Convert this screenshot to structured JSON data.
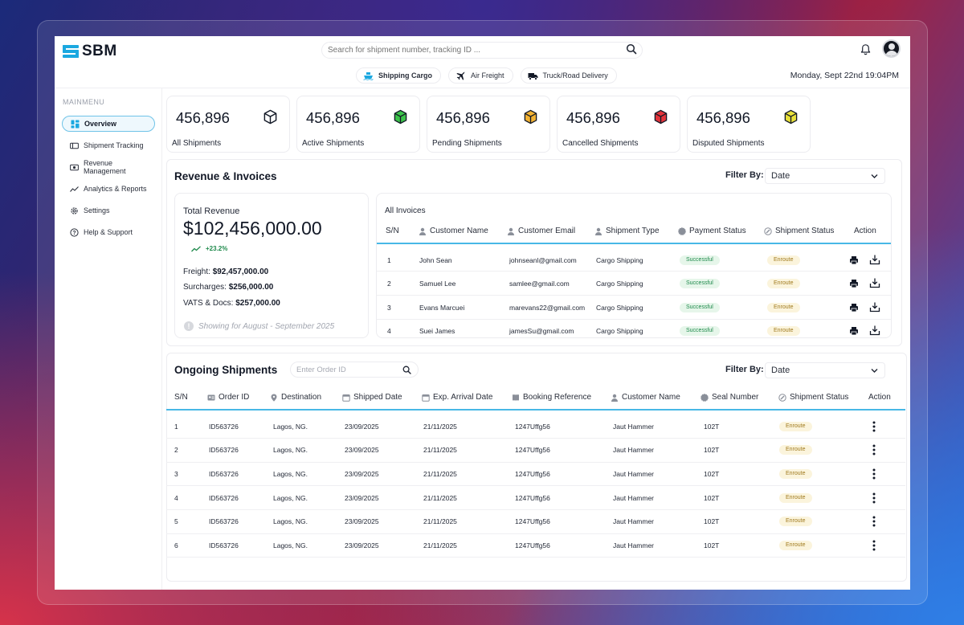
{
  "app": {
    "brand": "SBM"
  },
  "search": {
    "placeholder": "Search for shipment number, tracking ID ..."
  },
  "header": {
    "datetime": "Monday, Sept 22nd  19:04PM"
  },
  "modes": [
    {
      "label": "Shipping Cargo",
      "icon": "ship-icon"
    },
    {
      "label": "Air Freight",
      "icon": "plane-icon"
    },
    {
      "label": "Truck/Road Delivery",
      "icon": "truck-icon"
    }
  ],
  "sidebar": {
    "title": "MAINMENU",
    "items": [
      {
        "label": "Overview",
        "icon": "grid-icon"
      },
      {
        "label": "Shipment Tracking",
        "icon": "tracking-icon"
      },
      {
        "label": "Revenue Management",
        "icon": "money-icon"
      },
      {
        "label": "Analytics & Reports",
        "icon": "chart-line-icon"
      },
      {
        "label": "Settings",
        "icon": "gear-icon"
      },
      {
        "label": "Help & Support",
        "icon": "help-icon"
      }
    ]
  },
  "stats": [
    {
      "value": "456,896",
      "label": "All Shipments",
      "color": "#ffffff"
    },
    {
      "value": "456,896",
      "label": "Active Shipments",
      "color": "#3cc24a"
    },
    {
      "value": "456,896",
      "label": "Pending Shipments",
      "color": "#f2b233"
    },
    {
      "value": "456,896",
      "label": "Cancelled Shipments",
      "color": "#e2343b"
    },
    {
      "value": "456,896",
      "label": "Disputed Shipments",
      "color": "#e8e03a"
    }
  ],
  "revenue": {
    "title": "Revenue & Invoices",
    "filter_label": "Filter By:",
    "filter_value": "Date",
    "total_label": "Total Revenue",
    "total": "$102,456,000.00",
    "growth": "+23.2%",
    "freight_label": "Freight:",
    "freight": "$92,457,000.00",
    "surcharges_label": "Surcharges:",
    "surcharges": "$256,000.00",
    "vats_label": "VATS & Docs:",
    "vats": "$257,000.00",
    "period": "Showing for  August - September 2025"
  },
  "invoices": {
    "title": "All Invoices",
    "columns": [
      "S/N",
      "Customer Name",
      "Customer Email",
      "Shipment Type",
      "Payment Status",
      "Shipment Status",
      "Action"
    ],
    "rows": [
      {
        "sn": "1",
        "name": "John Sean",
        "email": "johnseanl@gmail.com",
        "type": "Cargo Shipping",
        "payment": "Successful",
        "status": "Enroute"
      },
      {
        "sn": "2",
        "name": "Samuel Lee",
        "email": "samlee@gmail.com",
        "type": "Cargo Shipping",
        "payment": "Successful",
        "status": "Enroute"
      },
      {
        "sn": "3",
        "name": "Evans Marcuei",
        "email": "marevans22@gmail.com",
        "type": "Cargo Shipping",
        "payment": "Successful",
        "status": "Enroute"
      },
      {
        "sn": "4",
        "name": "Suei James",
        "email": "jamesSu@gmail.com",
        "type": "Cargo Shipping",
        "payment": "Successful",
        "status": "Enroute"
      }
    ]
  },
  "shipments": {
    "title": "Ongoing Shipments",
    "search_placeholder": "Enter Order ID",
    "filter_label": "Filter By:",
    "filter_value": "Date",
    "columns": [
      "S/N",
      "Order ID",
      "Destination",
      "Shipped Date",
      "Exp. Arrival Date",
      "Booking Reference",
      "Customer Name",
      "Seal Number",
      "Shipment Status",
      "Action"
    ],
    "rows": [
      {
        "sn": "1",
        "order": "ID563726",
        "dest": "Lagos, NG.",
        "shipped": "23/09/2025",
        "arrival": "21/11/2025",
        "ref": "1247Uffg56",
        "customer": "Jaut Hammer",
        "seal": "102T",
        "status": "Enroute"
      },
      {
        "sn": "2",
        "order": "ID563726",
        "dest": "Lagos, NG.",
        "shipped": "23/09/2025",
        "arrival": "21/11/2025",
        "ref": "1247Uffg56",
        "customer": "Jaut Hammer",
        "seal": "102T",
        "status": "Enroute"
      },
      {
        "sn": "3",
        "order": "ID563726",
        "dest": "Lagos, NG.",
        "shipped": "23/09/2025",
        "arrival": "21/11/2025",
        "ref": "1247Uffg56",
        "customer": "Jaut Hammer",
        "seal": "102T",
        "status": "Enroute"
      },
      {
        "sn": "4",
        "order": "ID563726",
        "dest": "Lagos, NG.",
        "shipped": "23/09/2025",
        "arrival": "21/11/2025",
        "ref": "1247Uffg56",
        "customer": "Jaut Hammer",
        "seal": "102T",
        "status": "Enroute"
      },
      {
        "sn": "5",
        "order": "ID563726",
        "dest": "Lagos, NG.",
        "shipped": "23/09/2025",
        "arrival": "21/11/2025",
        "ref": "1247Uffg56",
        "customer": "Jaut Hammer",
        "seal": "102T",
        "status": "Enroute"
      },
      {
        "sn": "6",
        "order": "ID563726",
        "dest": "Lagos, NG.",
        "shipped": "23/09/2025",
        "arrival": "21/11/2025",
        "ref": "1247Uffg56",
        "customer": "Jaut Hammer",
        "seal": "102T",
        "status": "Enroute"
      }
    ]
  }
}
